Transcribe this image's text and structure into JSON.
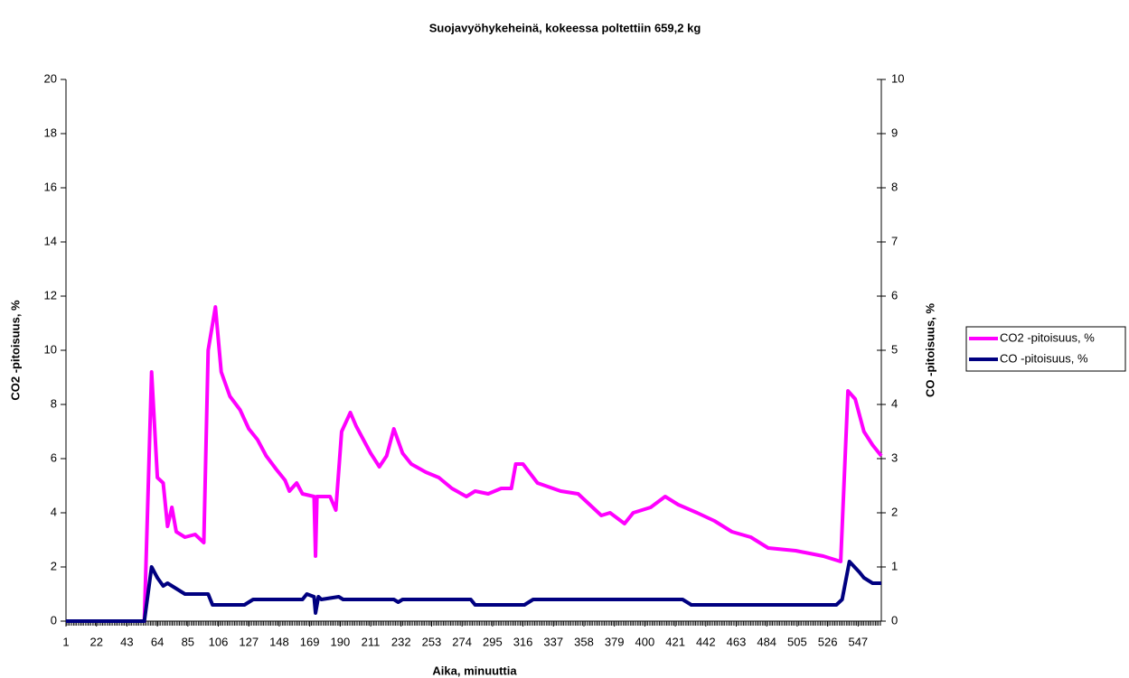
{
  "chart_data": {
    "type": "line",
    "title": "Suojavyöhykeheinä, kokeessa poltettiin 659,2 kg",
    "x_label": "Aika, minuuttia",
    "y_label": "CO2 -pitoisuus, %",
    "y2_label": "CO -pitoisuus, %",
    "xlim": [
      1,
      563
    ],
    "xticks": [
      1,
      22,
      43,
      64,
      85,
      106,
      127,
      148,
      169,
      190,
      211,
      232,
      253,
      274,
      295,
      316,
      337,
      358,
      379,
      400,
      421,
      442,
      463,
      484,
      505,
      526,
      547
    ],
    "ylim": [
      0,
      20
    ],
    "yticks": [
      0,
      2,
      4,
      6,
      8,
      10,
      12,
      14,
      16,
      18,
      20
    ],
    "y2lim": [
      0,
      10
    ],
    "y2ticks": [
      0,
      1,
      2,
      3,
      4,
      5,
      6,
      7,
      8,
      9,
      10
    ],
    "legend": "right",
    "series": [
      {
        "name": "CO2 -pitoisuus, %",
        "color": "#ff00ff",
        "axis": "y",
        "x": [
          1,
          55,
          60,
          64,
          68,
          71,
          74,
          77,
          83,
          90,
          96,
          99,
          104,
          108,
          114,
          121,
          127,
          133,
          139,
          146,
          152,
          155,
          160,
          164,
          172,
          173,
          174,
          183,
          187,
          191,
          197,
          201,
          211,
          217,
          222,
          227,
          233,
          239,
          249,
          258,
          267,
          277,
          283,
          292,
          301,
          308,
          311,
          316,
          326,
          342,
          354,
          364,
          370,
          376,
          386,
          392,
          404,
          414,
          423,
          436,
          448,
          460,
          473,
          485,
          504,
          523,
          535,
          540,
          545,
          551,
          557,
          563
        ],
        "values": [
          0,
          0,
          9.2,
          5.3,
          5.1,
          3.5,
          4.2,
          3.3,
          3.1,
          3.2,
          2.9,
          10,
          11.6,
          9.2,
          8.3,
          7.8,
          7.1,
          6.7,
          6.1,
          5.6,
          5.2,
          4.8,
          5.1,
          4.7,
          4.6,
          2.4,
          4.6,
          4.6,
          4.1,
          7.0,
          7.7,
          7.2,
          6.2,
          5.7,
          6.1,
          7.1,
          6.2,
          5.8,
          5.5,
          5.3,
          4.9,
          4.6,
          4.8,
          4.7,
          4.9,
          4.9,
          5.8,
          5.8,
          5.1,
          4.8,
          4.7,
          4.2,
          3.9,
          4.0,
          3.6,
          4.0,
          4.2,
          4.6,
          4.3,
          4.0,
          3.7,
          3.3,
          3.1,
          2.7,
          2.6,
          2.4,
          2.2,
          8.5,
          8.2,
          7.0,
          6.5,
          6.1
        ]
      },
      {
        "name": "CO -pitoisuus, %",
        "color": "#000080",
        "axis": "y2",
        "x": [
          1,
          55,
          60,
          64,
          68,
          71,
          77,
          83,
          99,
          102,
          124,
          130,
          164,
          167,
          172,
          173,
          175,
          177,
          189,
          192,
          227,
          230,
          233,
          280,
          283,
          317,
          323,
          426,
          432,
          532,
          536,
          541,
          548,
          551,
          557,
          563
        ],
        "values": [
          0,
          0,
          1.0,
          0.8,
          0.65,
          0.7,
          0.6,
          0.5,
          0.5,
          0.3,
          0.3,
          0.4,
          0.4,
          0.5,
          0.45,
          0.15,
          0.45,
          0.4,
          0.45,
          0.4,
          0.4,
          0.35,
          0.4,
          0.4,
          0.3,
          0.3,
          0.4,
          0.4,
          0.3,
          0.3,
          0.4,
          1.1,
          0.9,
          0.8,
          0.7,
          0.7
        ]
      }
    ]
  }
}
